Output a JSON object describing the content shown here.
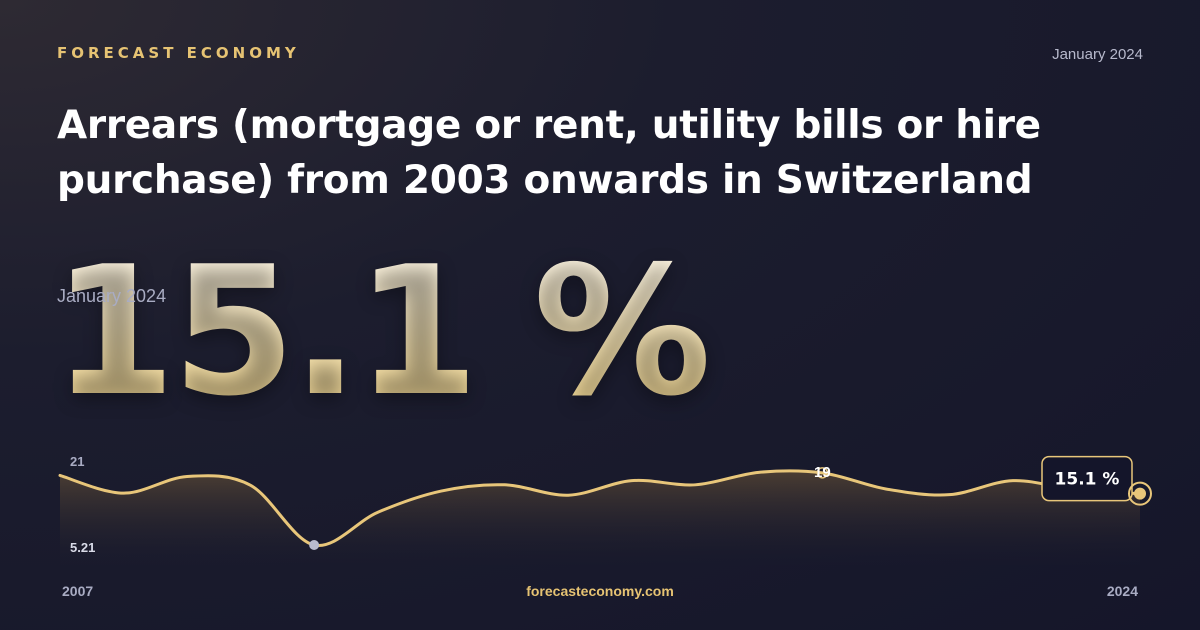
{
  "header": {
    "brand": "FORECAST ECONOMY",
    "date": "January 2024"
  },
  "title": "Arrears (mortgage or rent, utility bills or hire purchase) from 2003 onwards in Switzerland",
  "headline": {
    "value": "15.1 %",
    "date": "January 2024"
  },
  "footer": {
    "site": "forecasteconomy.com"
  },
  "colors": {
    "accent": "#e6c373",
    "line": "#e8c67a",
    "background": "#1c1d2e"
  },
  "chart_data": {
    "type": "area",
    "title": "",
    "xlabel": "",
    "ylabel": "",
    "x_start_label": "2007",
    "x_end_label": "2024",
    "y_max_label": "21",
    "y_min_label": "5.21",
    "ylim": [
      5.21,
      21
    ],
    "x": [
      2007,
      2008,
      2009,
      2010,
      2011,
      2012,
      2013,
      2014,
      2015,
      2016,
      2017,
      2018,
      2019,
      2020,
      2021,
      2022,
      2023,
      2024
    ],
    "values": [
      18.6,
      15.2,
      18.4,
      16.7,
      5.21,
      11.5,
      15.6,
      16.8,
      14.8,
      17.6,
      16.8,
      19.2,
      19.1,
      16.0,
      14.9,
      17.6,
      15.8,
      15.1
    ],
    "annotations": [
      {
        "label": "19",
        "x": 2019,
        "y": 19.1
      },
      {
        "label": "15.1 %",
        "x": 2024,
        "y": 15.1
      }
    ],
    "min_marker": {
      "x": 2011,
      "y": 5.21
    },
    "grid": false,
    "legend": "none"
  }
}
